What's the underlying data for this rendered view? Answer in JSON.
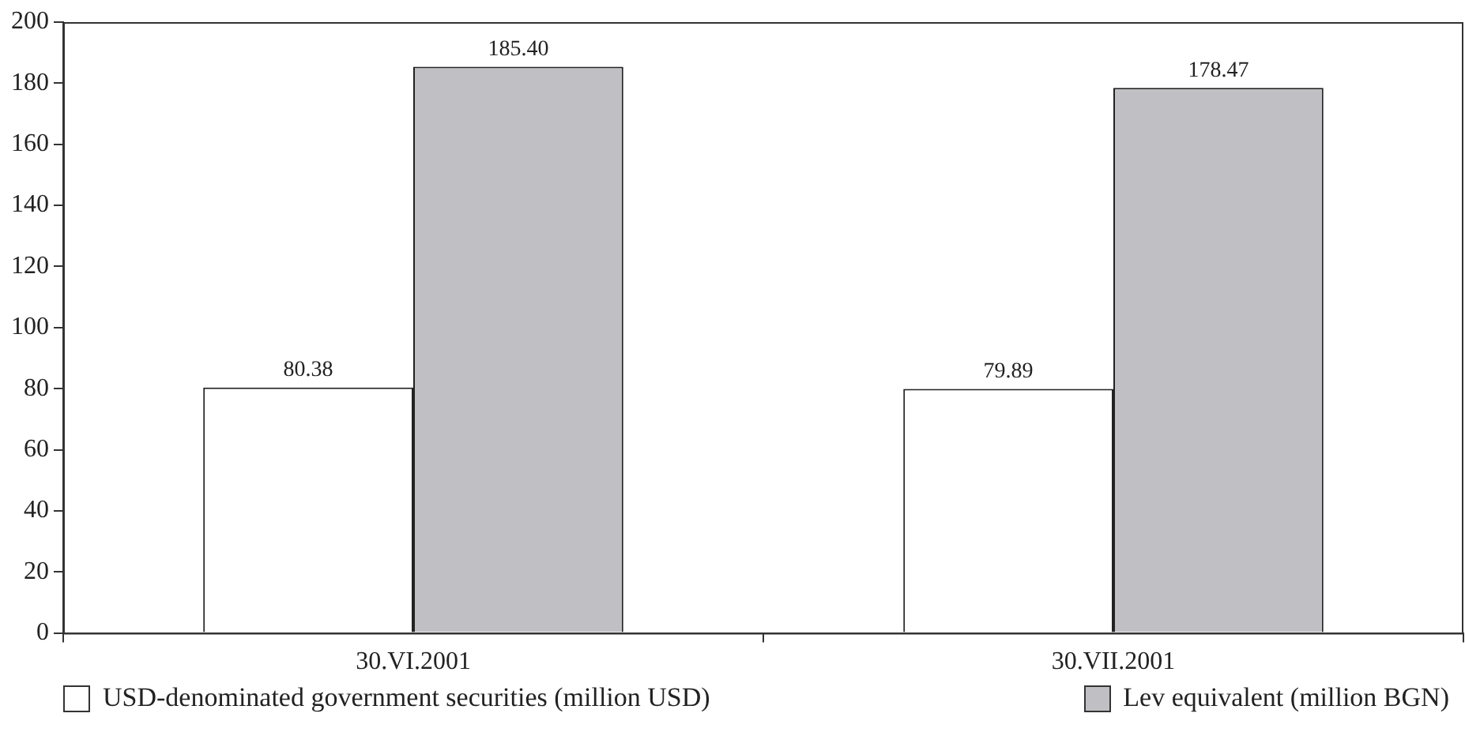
{
  "chart_data": {
    "type": "bar",
    "categories": [
      "30.VI.2001",
      "30.VII.2001"
    ],
    "series": [
      {
        "name": "USD-denominated government securities (million USD)",
        "color": "#ffffff",
        "values": [
          80.38,
          79.89
        ],
        "value_labels": [
          "80.38",
          "79.89"
        ]
      },
      {
        "name": "Lev equivalent (million BGN)",
        "color": "#c0c0c4",
        "values": [
          185.4,
          178.47
        ],
        "value_labels": [
          "185.40",
          "178.47"
        ]
      }
    ],
    "ylim": [
      0,
      200
    ],
    "yticks": [
      0,
      20,
      40,
      60,
      80,
      100,
      120,
      140,
      160,
      180,
      200
    ],
    "grid": false,
    "legend": "bottom"
  }
}
